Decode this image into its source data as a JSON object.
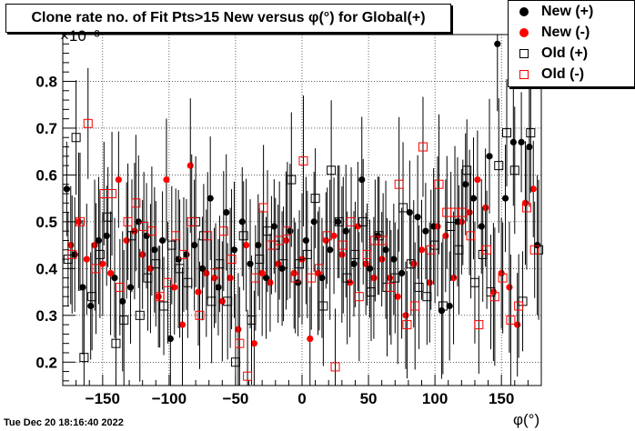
{
  "chart_data": {
    "type": "scatter",
    "title": "Clone rate no. of Fit Pts>15 New versus φ(°) for Global(+)",
    "xlabel": "φ(°)",
    "y_exponent_label": "×10⁻³",
    "xlim": [
      -180,
      180
    ],
    "ylim": [
      0.15,
      0.9
    ],
    "xticks": [
      "−150",
      "−100",
      "−50",
      "0",
      "50",
      "100",
      "150"
    ],
    "yticks": [
      "0.2",
      "0.3",
      "0.4",
      "0.5",
      "0.6",
      "0.7",
      "0.8"
    ],
    "grid": true,
    "legend_position": "top-right",
    "series": [
      {
        "name": "New (+)",
        "color": "#000000",
        "marker": "filled-circle",
        "x": [
          -177,
          -171,
          -165,
          -159,
          -153,
          -147,
          -141,
          -135,
          -129,
          -123,
          -117,
          -111,
          -105,
          -99,
          -93,
          -87,
          -81,
          -75,
          -69,
          -63,
          -57,
          -51,
          -45,
          -39,
          -33,
          -27,
          -21,
          -15,
          -9,
          -3,
          3,
          9,
          15,
          21,
          27,
          33,
          39,
          45,
          51,
          57,
          63,
          69,
          75,
          81,
          87,
          93,
          99,
          105,
          111,
          117,
          123,
          129,
          135,
          141,
          147,
          153,
          159,
          165,
          171,
          177
        ],
        "y": [
          0.57,
          0.43,
          0.36,
          0.32,
          0.46,
          0.47,
          0.38,
          0.33,
          0.36,
          0.5,
          0.47,
          0.44,
          0.46,
          0.25,
          0.42,
          0.43,
          0.45,
          0.4,
          0.55,
          0.36,
          0.52,
          0.44,
          0.5,
          0.41,
          0.45,
          0.38,
          0.49,
          0.4,
          0.48,
          0.37,
          0.46,
          0.5,
          0.38,
          0.44,
          0.5,
          0.48,
          0.41,
          0.59,
          0.4,
          0.47,
          0.44,
          0.42,
          0.39,
          0.52,
          0.51,
          0.48,
          0.49,
          0.31,
          0.32,
          0.5,
          0.58,
          0.55,
          0.49,
          0.64,
          0.88,
          0.55,
          0.67,
          0.67,
          0.66,
          0.45
        ]
      },
      {
        "name": "New (-)",
        "color": "#ff0000",
        "marker": "filled-circle",
        "x": [
          -174,
          -168,
          -162,
          -156,
          -150,
          -144,
          -138,
          -132,
          -126,
          -120,
          -114,
          -108,
          -102,
          -96,
          -90,
          -84,
          -78,
          -72,
          -66,
          -60,
          -54,
          -48,
          -42,
          -36,
          -30,
          -24,
          -18,
          -12,
          -6,
          0,
          6,
          12,
          18,
          24,
          30,
          36,
          42,
          48,
          54,
          60,
          66,
          72,
          78,
          84,
          90,
          96,
          102,
          108,
          114,
          120,
          126,
          132,
          138,
          144,
          150,
          156,
          162,
          168,
          174
        ],
        "y": [
          0.45,
          0.5,
          0.42,
          0.45,
          0.41,
          0.39,
          0.59,
          0.46,
          0.48,
          0.43,
          0.4,
          0.34,
          0.59,
          0.36,
          0.28,
          0.62,
          0.35,
          0.39,
          0.38,
          0.33,
          0.38,
          0.27,
          0.45,
          0.24,
          0.39,
          0.37,
          0.41,
          0.46,
          0.39,
          0.42,
          0.25,
          0.39,
          0.46,
          0.47,
          0.43,
          0.37,
          0.49,
          0.41,
          0.38,
          0.42,
          0.38,
          0.34,
          0.3,
          0.41,
          0.44,
          0.37,
          0.49,
          0.47,
          0.38,
          0.5,
          0.52,
          0.59,
          0.53,
          0.35,
          0.39,
          0.36,
          0.28,
          0.54,
          0.57
        ]
      },
      {
        "name": "Old (+)",
        "color": "#000000",
        "marker": "open-square",
        "x": [
          -176,
          -170,
          -164,
          -158,
          -152,
          -146,
          -140,
          -134,
          -128,
          -122,
          -116,
          -110,
          -104,
          -98,
          -92,
          -86,
          -80,
          -74,
          -68,
          -62,
          -56,
          -50,
          -44,
          -38,
          -32,
          -26,
          -20,
          -14,
          -8,
          -2,
          4,
          10,
          16,
          22,
          28,
          34,
          40,
          46,
          52,
          58,
          64,
          70,
          76,
          82,
          88,
          94,
          100,
          106,
          112,
          118,
          124,
          130,
          136,
          142,
          148,
          154,
          160,
          166,
          172,
          178
        ],
        "y": [
          0.42,
          0.68,
          0.21,
          0.34,
          0.43,
          0.51,
          0.24,
          0.29,
          0.47,
          0.3,
          0.38,
          0.41,
          0.32,
          0.45,
          0.4,
          0.37,
          0.5,
          0.47,
          0.33,
          0.41,
          0.33,
          0.2,
          0.47,
          0.29,
          0.42,
          0.48,
          0.45,
          0.41,
          0.59,
          0.41,
          0.43,
          0.55,
          0.32,
          0.61,
          0.5,
          0.38,
          0.43,
          0.5,
          0.35,
          0.47,
          0.36,
          0.38,
          0.53,
          0.41,
          0.36,
          0.34,
          0.45,
          0.32,
          0.49,
          0.44,
          0.61,
          0.37,
          0.43,
          0.35,
          0.62,
          0.69,
          0.61,
          0.33,
          0.69,
          0.44
        ]
      },
      {
        "name": "Old (-)",
        "color": "#ff0000",
        "marker": "open-square",
        "x": [
          -173,
          -167,
          -161,
          -155,
          -149,
          -143,
          -137,
          -131,
          -125,
          -119,
          -113,
          -107,
          -101,
          -95,
          -89,
          -83,
          -77,
          -71,
          -65,
          -59,
          -53,
          -47,
          -41,
          -35,
          -29,
          -23,
          -17,
          -11,
          -5,
          1,
          7,
          13,
          19,
          25,
          31,
          37,
          43,
          49,
          55,
          61,
          67,
          73,
          79,
          85,
          91,
          97,
          103,
          109,
          115,
          121,
          127,
          133,
          139,
          145,
          151,
          157,
          163,
          169,
          175
        ],
        "y": [
          0.43,
          0.5,
          0.71,
          0.4,
          0.56,
          0.56,
          0.36,
          0.5,
          0.54,
          0.49,
          0.48,
          0.34,
          0.37,
          0.47,
          0.43,
          0.5,
          0.3,
          0.47,
          0.39,
          0.48,
          0.42,
          0.24,
          0.17,
          0.38,
          0.53,
          0.45,
          0.46,
          0.48,
          0.38,
          0.63,
          0.38,
          0.4,
          0.47,
          0.19,
          0.45,
          0.5,
          0.34,
          0.43,
          0.46,
          0.46,
          0.36,
          0.58,
          0.28,
          0.32,
          0.66,
          0.44,
          0.58,
          0.52,
          0.52,
          0.52,
          0.47,
          0.28,
          0.44,
          0.34,
          0.38,
          0.29,
          0.32,
          0.53,
          0.44
        ]
      }
    ]
  }
}
